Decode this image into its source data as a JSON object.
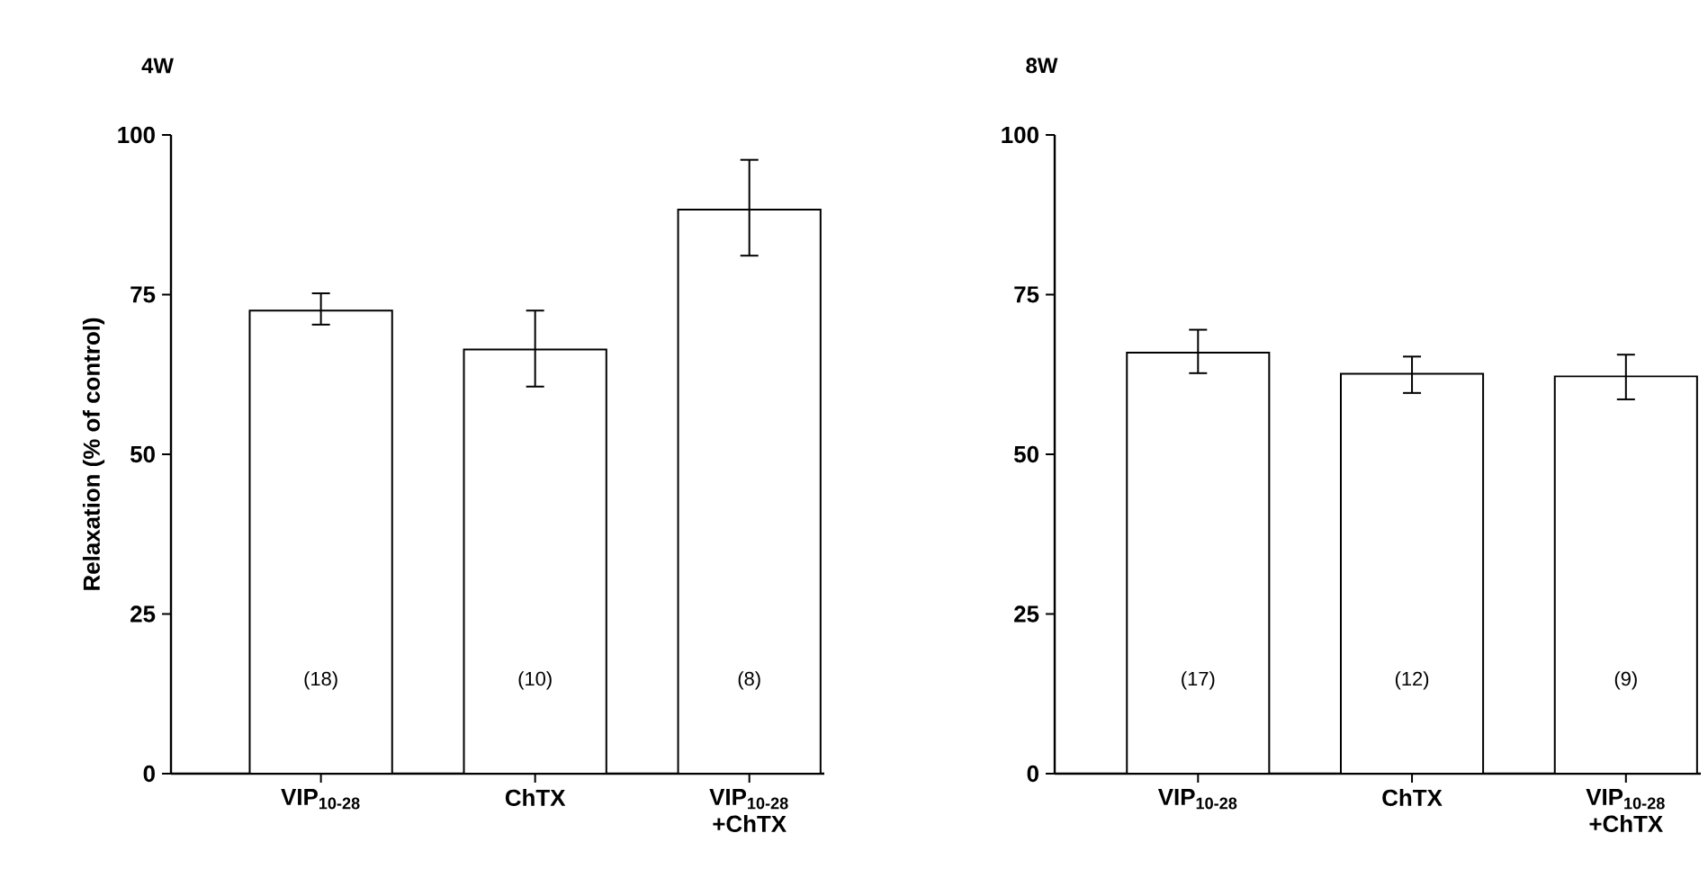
{
  "chart_data": [
    {
      "type": "bar",
      "title": "4W",
      "ylabel": "Relaxation (% of control)",
      "categories": [
        "VIP$_{10-28}$",
        "ChTX",
        "VIP$_{10-28}$ +ChTX"
      ],
      "values": [
        72.5,
        66.4,
        88.3
      ],
      "errors": [
        [
          70.3,
          75.2
        ],
        [
          60.6,
          72.5
        ],
        [
          81.1,
          96.1
        ]
      ],
      "color": "#ffffff",
      "ylim": [
        0,
        100
      ],
      "yticks": [
        0,
        25,
        50,
        75,
        100
      ],
      "annotations": [
        "(18)",
        "(10)",
        "(8)"
      ]
    },
    {
      "type": "bar",
      "title": "8W",
      "categories": [
        "VIP$_{10-28}$",
        "ChTX",
        "VIP$_{10-28}$ +ChTX"
      ],
      "values": [
        65.9,
        62.6,
        62.2
      ],
      "errors": [
        [
          62.7,
          69.5
        ],
        [
          59.6,
          65.3
        ],
        [
          58.6,
          65.6
        ]
      ],
      "color": "#ffffff",
      "ylim": [
        0,
        100
      ],
      "yticks": [
        0,
        25,
        50,
        75,
        100
      ],
      "annotations": [
        "(17)",
        "(12)",
        "(9)"
      ]
    }
  ]
}
